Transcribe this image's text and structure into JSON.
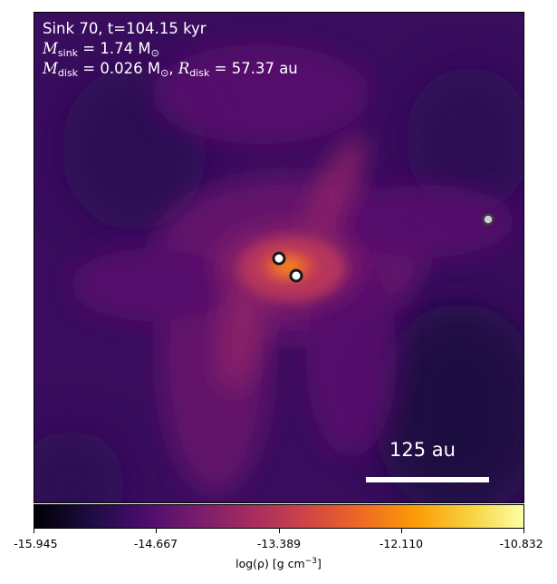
{
  "annotation": {
    "line1": "Sink 70, t=104.15 kyr",
    "m_sink_symbol": "M",
    "m_sink_sub": "sink",
    "m_sink_value": "= 1.74 M",
    "m_sink_sun": "⊙",
    "m_disk_symbol": "M",
    "m_disk_sub": "disk",
    "m_disk_value": "= 0.026 M",
    "m_disk_sun": "⊙",
    "sep": ", ",
    "r_disk_symbol": "R",
    "r_disk_sub": "disk",
    "r_disk_value": "= 57.37 au"
  },
  "scale_bar": {
    "label": "125 au",
    "length_au": 125
  },
  "colorbar": {
    "ticks": [
      "-15.945",
      "-14.667",
      "-13.389",
      "-12.110",
      "-10.832"
    ],
    "label_main": "log(ρ) [g cm",
    "label_sup": "−3",
    "label_end": "]",
    "colors": [
      "#000004",
      "#1b0c41",
      "#4a0c6b",
      "#781c6d",
      "#a52c60",
      "#cf4446",
      "#ed6925",
      "#fb9b06",
      "#f7d13d",
      "#fcffa4"
    ]
  },
  "chart_data": {
    "type": "heatmap",
    "title": "Sink 70, t=104.15 kyr",
    "colormap": "inferno",
    "quantity": "log(ρ) [g cm−3]",
    "vmin": -15.945,
    "vmax": -10.832,
    "colorbar_ticks": [
      -15.945,
      -14.667,
      -13.389,
      -12.11,
      -10.832
    ],
    "sink_mass_msun": 1.74,
    "disk_mass_msun": 0.026,
    "disk_radius_au": 57.37,
    "time_kyr": 104.15,
    "sink_id": 70,
    "scale_bar_au": 125,
    "sink_count": 3
  }
}
